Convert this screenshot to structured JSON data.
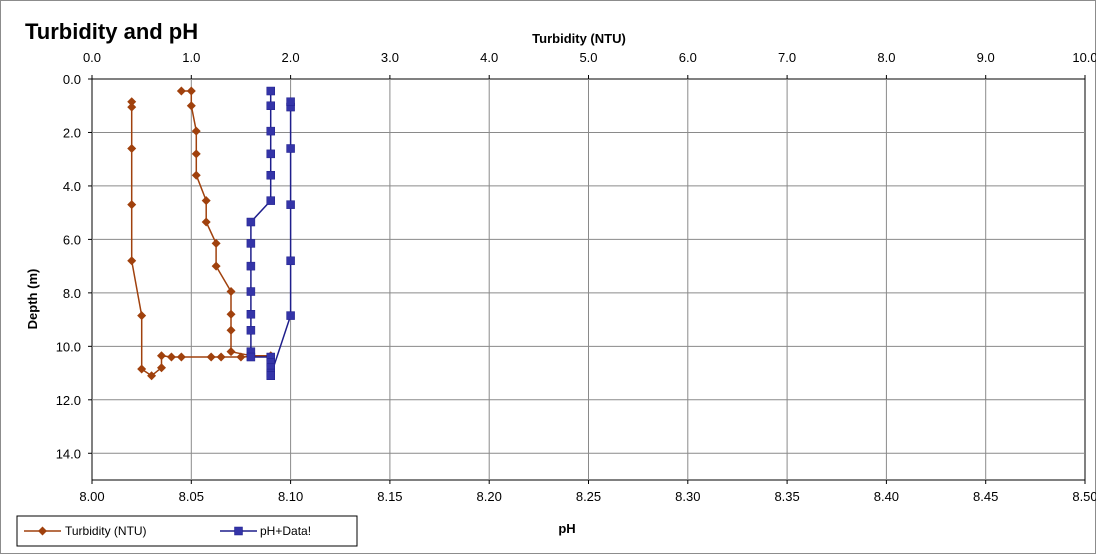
{
  "chart_data": {
    "type": "scatter",
    "title": "Turbidity and pH",
    "x_top_label": "Turbidity (NTU)",
    "x_bottom_label": "pH",
    "ylabel": "Depth (m)",
    "y_reversed": true,
    "ylim": [
      0,
      15
    ],
    "y_ticks": [
      "0.0",
      "2.0",
      "4.0",
      "6.0",
      "8.0",
      "10.0",
      "12.0",
      "14.0"
    ],
    "x_top_lim": [
      0,
      10
    ],
    "x_top_ticks": [
      "0.0",
      "1.0",
      "2.0",
      "3.0",
      "4.0",
      "5.0",
      "6.0",
      "7.0",
      "8.0",
      "9.0",
      "10.0"
    ],
    "x_bottom_lim": [
      8.0,
      8.5
    ],
    "x_bottom_ticks": [
      "8.00",
      "8.05",
      "8.10",
      "8.15",
      "8.20",
      "8.25",
      "8.30",
      "8.35",
      "8.40",
      "8.45",
      "8.50"
    ],
    "grid": true,
    "legend_position": "bottom-left",
    "series": [
      {
        "name": "Turbidity (NTU)",
        "axis": "top",
        "color": "#a0410d",
        "marker": "diamond",
        "points": [
          [
            0.9,
            0.45
          ],
          [
            1.0,
            0.45
          ],
          [
            1.0,
            1.0
          ],
          [
            1.05,
            1.95
          ],
          [
            1.05,
            2.8
          ],
          [
            1.05,
            3.6
          ],
          [
            1.15,
            4.55
          ],
          [
            1.15,
            5.35
          ],
          [
            1.25,
            6.15
          ],
          [
            1.25,
            7.0
          ],
          [
            1.4,
            7.95
          ],
          [
            1.4,
            8.8
          ],
          [
            1.4,
            9.4
          ],
          [
            1.4,
            10.2
          ],
          [
            1.6,
            10.35
          ],
          [
            1.8,
            10.35
          ],
          [
            1.5,
            10.4
          ],
          [
            1.3,
            10.4
          ],
          [
            1.2,
            10.4
          ],
          [
            0.9,
            10.4
          ],
          [
            0.8,
            10.4
          ],
          [
            0.7,
            10.35
          ],
          [
            0.7,
            10.8
          ],
          [
            0.6,
            11.1
          ],
          [
            0.5,
            10.85
          ],
          [
            0.5,
            8.85
          ],
          [
            0.4,
            6.8
          ],
          [
            0.4,
            4.7
          ],
          [
            0.4,
            2.6
          ],
          [
            0.4,
            1.05
          ],
          [
            0.4,
            0.85
          ]
        ]
      },
      {
        "name": "pH+Data!",
        "axis": "bottom",
        "color": "#1f1f8c",
        "marker": "square",
        "points": [
          [
            8.09,
            0.45
          ],
          [
            8.09,
            1.0
          ],
          [
            8.09,
            1.95
          ],
          [
            8.09,
            2.8
          ],
          [
            8.09,
            3.6
          ],
          [
            8.09,
            4.55
          ],
          [
            8.08,
            5.35
          ],
          [
            8.08,
            6.15
          ],
          [
            8.08,
            7.0
          ],
          [
            8.08,
            7.95
          ],
          [
            8.08,
            8.8
          ],
          [
            8.08,
            9.4
          ],
          [
            8.08,
            10.2
          ],
          [
            8.08,
            10.4
          ],
          [
            8.09,
            10.4
          ],
          [
            8.09,
            10.6
          ],
          [
            8.09,
            10.8
          ],
          [
            8.09,
            11.0
          ],
          [
            8.09,
            11.1
          ],
          [
            8.1,
            8.85
          ],
          [
            8.1,
            6.8
          ],
          [
            8.1,
            4.7
          ],
          [
            8.1,
            2.6
          ],
          [
            8.1,
            1.05
          ],
          [
            8.1,
            0.85
          ]
        ]
      }
    ]
  }
}
